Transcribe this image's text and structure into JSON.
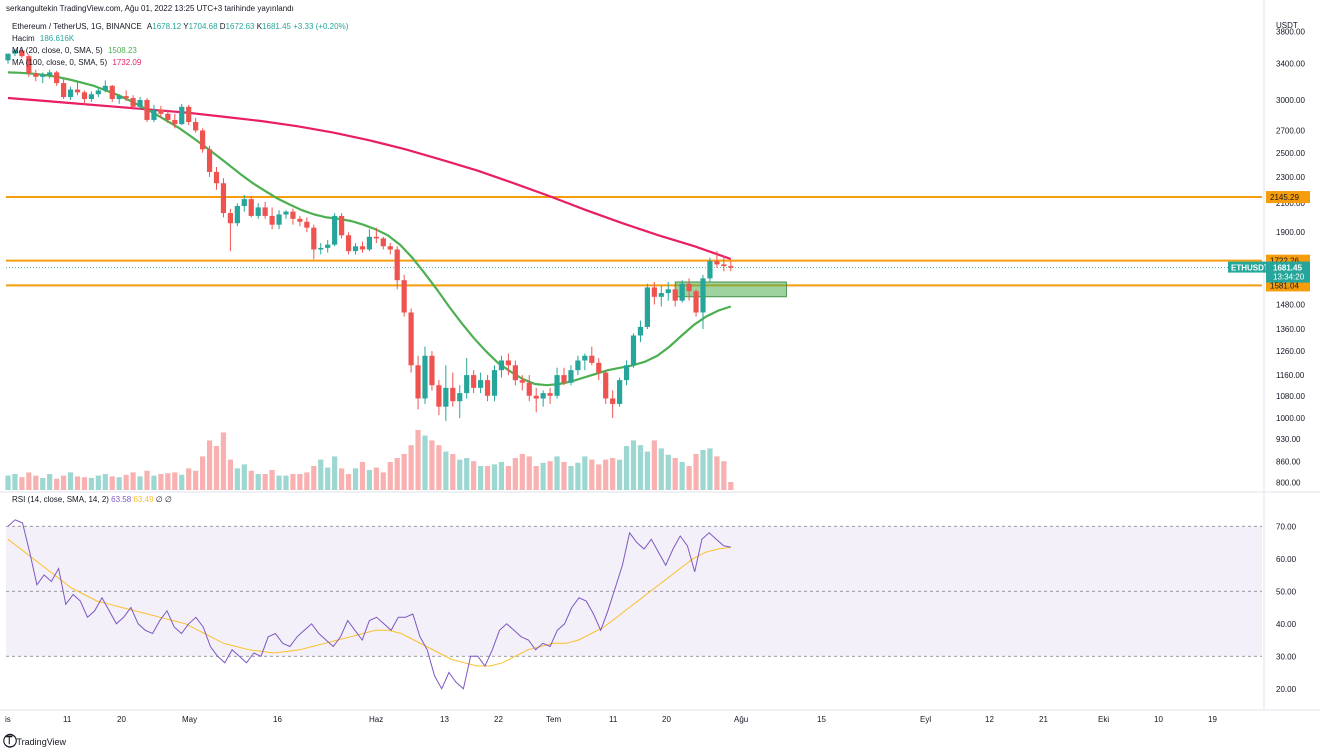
{
  "header": {
    "published": "serkangultekin TradingView.com, Ağu 01, 2022 13:25 UTC+3 tarihinde yayınlandı"
  },
  "legend": {
    "symbol": "Ethereum / TetherUS, 1G, BINANCE",
    "o_label": "A",
    "o": "1678.12",
    "h_label": "Y",
    "h": "1704.68",
    "l_label": "D",
    "l": "1672.63",
    "c_label": "K",
    "c": "1681.45",
    "chg": "+3.33 (+0.20%)",
    "volume_label": "Hacim",
    "volume": "186.616K",
    "ma20_label": "MA (20, close, 0, SMA, 5)",
    "ma20": "1508.23",
    "ma100_label": "MA (100, close, 0, SMA, 5)",
    "ma100": "1732.09",
    "rsi_label": "RSI (14, close, SMA, 14, 2)",
    "rsi": "63.58",
    "rsi_ma": "63.49",
    "rsi_x1": "∅",
    "rsi_x2": "∅"
  },
  "price_axis": {
    "currency": "USDT",
    "ticks": [
      "3800.00",
      "3400.00",
      "3000.00",
      "2700.00",
      "2500.00",
      "2300.00",
      "2100.00",
      "1900.00",
      "1480.00",
      "1360.00",
      "1260.00",
      "1160.00",
      "1080.00",
      "1000.00",
      "930.00",
      "860.00",
      "800.00"
    ],
    "levels": [
      {
        "label": "2145.29",
        "value": 2145.29,
        "color": "#f59d0a"
      },
      {
        "label": "1722.26",
        "value": 1722.26,
        "color": "#f59d0a"
      },
      {
        "label": "1581.04",
        "value": 1581.04,
        "color": "#f59d0a"
      }
    ],
    "current": {
      "symbol": "ETHUSDT",
      "price": "1681.45",
      "countdown": "13:34:20",
      "value": 1681.45,
      "color": "#26a69a"
    }
  },
  "rsi_axis": {
    "ticks": [
      "70.00",
      "60.00",
      "50.00",
      "40.00",
      "30.00",
      "20.00"
    ]
  },
  "time_axis": {
    "labels": [
      "is",
      "11",
      "20",
      "May",
      "16",
      "Haz",
      "13",
      "22",
      "Tem",
      "11",
      "20",
      "Ağu",
      "15",
      "Eyl",
      "12",
      "21",
      "Eki",
      "10",
      "19"
    ]
  },
  "colors": {
    "up": "#26a69a",
    "down": "#ef5350",
    "ma20": "#4caf50",
    "ma100": "#e91e63",
    "level": "#f59d0a",
    "rsi": "#7e57c2",
    "rsi_ma": "#fbc02d",
    "rsi_band": "#7e57c2"
  },
  "footer": {
    "brand": "TradingView"
  },
  "chart_data": {
    "type": "candlestick",
    "symbol": "ETHUSDT",
    "candles": [
      [
        3440,
        3520,
        3400,
        3520
      ],
      [
        3520,
        3580,
        3490,
        3560
      ],
      [
        3560,
        3600,
        3470,
        3490
      ],
      [
        3490,
        3510,
        3250,
        3290
      ],
      [
        3290,
        3330,
        3200,
        3250
      ],
      [
        3250,
        3300,
        3180,
        3270
      ],
      [
        3270,
        3330,
        3230,
        3300
      ],
      [
        3300,
        3320,
        3150,
        3180
      ],
      [
        3180,
        3230,
        3010,
        3030
      ],
      [
        3030,
        3140,
        3000,
        3110
      ],
      [
        3110,
        3200,
        3050,
        3080
      ],
      [
        3080,
        3100,
        2950,
        3010
      ],
      [
        3010,
        3090,
        2980,
        3060
      ],
      [
        3060,
        3120,
        3030,
        3100
      ],
      [
        3100,
        3210,
        3080,
        3150
      ],
      [
        3150,
        3160,
        2980,
        3010
      ],
      [
        3010,
        3060,
        2960,
        3040
      ],
      [
        3040,
        3100,
        2990,
        3020
      ],
      [
        3020,
        3050,
        2900,
        2930
      ],
      [
        2930,
        3030,
        2900,
        3000
      ],
      [
        3000,
        3020,
        2780,
        2800
      ],
      [
        2800,
        2950,
        2780,
        2900
      ],
      [
        2900,
        2940,
        2820,
        2860
      ],
      [
        2860,
        2900,
        2770,
        2800
      ],
      [
        2800,
        2860,
        2720,
        2760
      ],
      [
        2760,
        2960,
        2750,
        2930
      ],
      [
        2930,
        2950,
        2750,
        2780
      ],
      [
        2780,
        2820,
        2680,
        2700
      ],
      [
        2700,
        2720,
        2500,
        2530
      ],
      [
        2530,
        2560,
        2300,
        2340
      ],
      [
        2340,
        2380,
        2200,
        2250
      ],
      [
        2250,
        2290,
        2000,
        2030
      ],
      [
        2030,
        2060,
        1780,
        1960
      ],
      [
        1960,
        2100,
        1940,
        2080
      ],
      [
        2080,
        2160,
        2040,
        2130
      ],
      [
        2130,
        2150,
        2000,
        2010
      ],
      [
        2010,
        2100,
        1990,
        2070
      ],
      [
        2070,
        2110,
        1990,
        2010
      ],
      [
        2010,
        2070,
        1920,
        1950
      ],
      [
        1950,
        2050,
        1920,
        2020
      ],
      [
        2020,
        2050,
        1990,
        2040
      ],
      [
        2040,
        2060,
        1950,
        1990
      ],
      [
        1990,
        2010,
        1940,
        1970
      ],
      [
        1970,
        2000,
        1900,
        1930
      ],
      [
        1930,
        1950,
        1730,
        1790
      ],
      [
        1790,
        1830,
        1760,
        1800
      ],
      [
        1800,
        1850,
        1770,
        1820
      ],
      [
        1820,
        2030,
        1810,
        2010
      ],
      [
        2010,
        2030,
        1860,
        1880
      ],
      [
        1880,
        1900,
        1760,
        1780
      ],
      [
        1780,
        1830,
        1760,
        1810
      ],
      [
        1810,
        1840,
        1770,
        1790
      ],
      [
        1790,
        1920,
        1780,
        1870
      ],
      [
        1870,
        1930,
        1830,
        1860
      ],
      [
        1860,
        1870,
        1790,
        1810
      ],
      [
        1810,
        1830,
        1760,
        1790
      ],
      [
        1790,
        1810,
        1560,
        1610
      ],
      [
        1610,
        1640,
        1420,
        1440
      ],
      [
        1440,
        1460,
        1170,
        1200
      ],
      [
        1200,
        1240,
        1030,
        1070
      ],
      [
        1070,
        1280,
        1050,
        1240
      ],
      [
        1240,
        1260,
        1100,
        1120
      ],
      [
        1120,
        1140,
        1010,
        1040
      ],
      [
        1040,
        1200,
        990,
        1110
      ],
      [
        1110,
        1170,
        1040,
        1060
      ],
      [
        1060,
        1120,
        1000,
        1090
      ],
      [
        1090,
        1230,
        1070,
        1160
      ],
      [
        1160,
        1180,
        1090,
        1110
      ],
      [
        1110,
        1170,
        1090,
        1140
      ],
      [
        1140,
        1160,
        1060,
        1080
      ],
      [
        1080,
        1200,
        1060,
        1180
      ],
      [
        1180,
        1240,
        1150,
        1220
      ],
      [
        1220,
        1250,
        1160,
        1200
      ],
      [
        1200,
        1220,
        1120,
        1140
      ],
      [
        1140,
        1160,
        1100,
        1130
      ],
      [
        1130,
        1160,
        1060,
        1080
      ],
      [
        1080,
        1110,
        1020,
        1070
      ],
      [
        1070,
        1100,
        1040,
        1090
      ],
      [
        1090,
        1110,
        1050,
        1080
      ],
      [
        1080,
        1190,
        1070,
        1160
      ],
      [
        1160,
        1190,
        1120,
        1130
      ],
      [
        1130,
        1200,
        1120,
        1180
      ],
      [
        1180,
        1240,
        1160,
        1220
      ],
      [
        1220,
        1250,
        1180,
        1240
      ],
      [
        1240,
        1280,
        1200,
        1210
      ],
      [
        1210,
        1230,
        1140,
        1170
      ],
      [
        1170,
        1180,
        1050,
        1070
      ],
      [
        1070,
        1100,
        1000,
        1050
      ],
      [
        1050,
        1150,
        1040,
        1140
      ],
      [
        1140,
        1220,
        1120,
        1200
      ],
      [
        1200,
        1340,
        1190,
        1330
      ],
      [
        1330,
        1400,
        1300,
        1370
      ],
      [
        1370,
        1590,
        1360,
        1570
      ],
      [
        1570,
        1600,
        1480,
        1520
      ],
      [
        1520,
        1580,
        1470,
        1540
      ],
      [
        1540,
        1600,
        1500,
        1560
      ],
      [
        1560,
        1580,
        1470,
        1500
      ],
      [
        1500,
        1610,
        1490,
        1590
      ],
      [
        1590,
        1620,
        1500,
        1550
      ],
      [
        1550,
        1560,
        1420,
        1440
      ],
      [
        1440,
        1640,
        1360,
        1620
      ],
      [
        1620,
        1740,
        1600,
        1720
      ],
      [
        1720,
        1780,
        1680,
        1700
      ],
      [
        1700,
        1750,
        1660,
        1690
      ],
      [
        1690,
        1720,
        1660,
        1681
      ]
    ],
    "volume_relative": [
      0.18,
      0.2,
      0.16,
      0.22,
      0.18,
      0.15,
      0.2,
      0.14,
      0.18,
      0.22,
      0.17,
      0.16,
      0.15,
      0.18,
      0.2,
      0.17,
      0.16,
      0.19,
      0.22,
      0.17,
      0.24,
      0.18,
      0.2,
      0.21,
      0.22,
      0.19,
      0.27,
      0.24,
      0.42,
      0.62,
      0.55,
      0.72,
      0.38,
      0.27,
      0.32,
      0.24,
      0.2,
      0.2,
      0.25,
      0.18,
      0.18,
      0.2,
      0.2,
      0.22,
      0.3,
      0.38,
      0.28,
      0.42,
      0.27,
      0.2,
      0.27,
      0.35,
      0.25,
      0.28,
      0.22,
      0.35,
      0.4,
      0.45,
      0.56,
      0.75,
      0.68,
      0.62,
      0.56,
      0.48,
      0.45,
      0.38,
      0.4,
      0.36,
      0.3,
      0.3,
      0.32,
      0.35,
      0.3,
      0.4,
      0.45,
      0.42,
      0.3,
      0.34,
      0.36,
      0.42,
      0.35,
      0.3,
      0.34,
      0.42,
      0.38,
      0.32,
      0.38,
      0.4,
      0.38,
      0.55,
      0.62,
      0.56,
      0.48,
      0.62,
      0.52,
      0.44,
      0.4,
      0.35,
      0.3,
      0.45,
      0.5,
      0.52,
      0.42,
      0.36,
      0.1
    ],
    "ma20": [
      3300,
      3295,
      3285,
      3270,
      3250,
      3220,
      3185,
      3150,
      3100,
      3050,
      2990,
      2925,
      2860,
      2790,
      2720,
      2640,
      2560,
      2480,
      2400,
      2320,
      2250,
      2190,
      2135,
      2090,
      2050,
      2020,
      2000,
      1990,
      1975,
      1950,
      1920,
      1880,
      1820,
      1740,
      1650,
      1560,
      1470,
      1390,
      1320,
      1260,
      1210,
      1175,
      1145,
      1125,
      1120,
      1125,
      1135,
      1150,
      1165,
      1180,
      1190,
      1200,
      1215,
      1240,
      1280,
      1330,
      1380,
      1420,
      1450,
      1470
    ],
    "ma100": [
      3020,
      2990,
      2960,
      2930,
      2900,
      2870,
      2830,
      2790,
      2740,
      2680,
      2610,
      2530,
      2440,
      2350,
      2250,
      2150,
      2050,
      1960,
      1880,
      1810,
      1732
    ],
    "rsi": [
      70,
      72,
      71,
      62,
      52,
      55,
      53,
      57,
      46,
      49,
      47,
      42,
      44,
      48,
      44,
      40,
      42,
      45,
      40,
      38,
      37,
      41,
      44,
      39,
      37,
      40,
      42,
      39,
      33,
      30,
      28,
      32,
      30,
      28,
      31,
      30,
      36,
      37,
      34,
      33,
      36,
      38,
      40,
      37,
      35,
      33,
      36,
      41,
      38,
      35,
      41,
      42,
      40,
      38,
      42,
      42,
      43,
      36,
      32,
      24,
      20,
      25,
      22,
      20,
      30,
      30,
      27,
      32,
      38,
      40,
      38,
      36,
      35,
      32,
      34,
      33,
      38,
      40,
      45,
      48,
      47,
      43,
      38,
      44,
      51,
      58,
      68,
      65,
      63,
      66,
      62,
      58,
      63,
      67,
      64,
      56,
      66,
      68,
      66,
      64,
      63.58
    ],
    "rsi_ma": [
      66,
      63,
      60,
      57,
      54,
      51,
      49,
      47,
      46,
      45,
      44,
      43,
      42,
      41,
      40,
      38,
      36,
      34,
      33,
      32,
      31.5,
      31,
      31.5,
      32,
      33,
      34,
      35,
      36,
      37,
      38,
      38,
      37,
      35,
      33,
      31,
      29,
      28,
      27,
      27,
      28,
      30,
      32,
      33,
      34,
      34,
      35,
      37,
      39,
      42,
      45,
      48,
      51,
      54,
      57,
      60,
      62,
      63,
      63.49
    ],
    "price_range": [
      780,
      3900
    ],
    "rsi_range": [
      15,
      75
    ],
    "rsi_bands": [
      70,
      50,
      30
    ],
    "green_zone": {
      "from": 1520,
      "to": 1600,
      "start_index": 96,
      "end_index": 112
    }
  }
}
